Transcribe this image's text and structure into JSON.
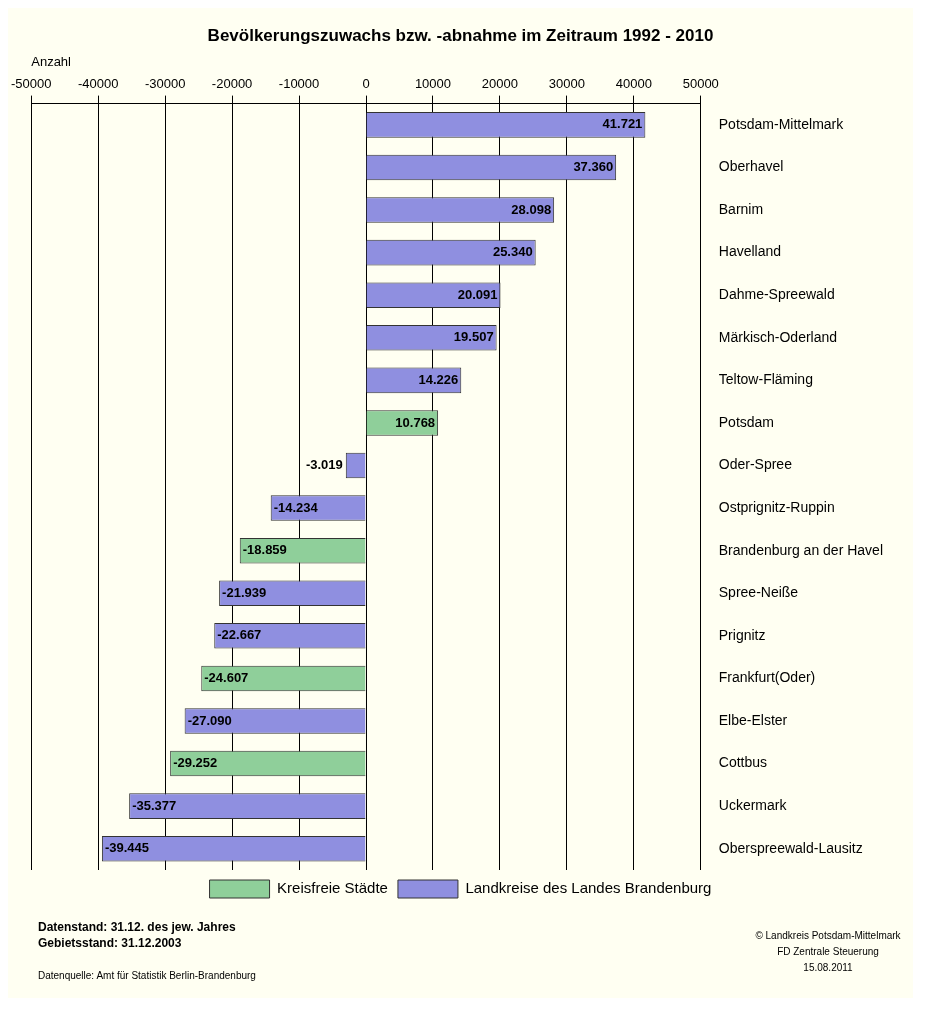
{
  "chart_data": {
    "type": "bar",
    "orientation": "horizontal",
    "stacked": true,
    "title": "Bevölkerungszuwachs bzw. -abnahme im Zeitraum 1992 - 2010",
    "xlabel": "Anzahl",
    "categories": [
      "Potsdam-Mittelmark",
      "Oberhavel",
      "Barnim",
      "Havelland",
      "Dahme-Spreewald",
      "Märkisch-Oderland",
      "Teltow-Fläming",
      "Potsdam",
      "Oder-Spree",
      "Ostprignitz-Ruppin",
      "Brandenburg an der Havel",
      "Spree-Neiße",
      "Prignitz",
      "Frankfurt(Oder)",
      "Elbe-Elster",
      "Cottbus",
      "Uckermark",
      "Oberspreewald-Lausitz"
    ],
    "series": [
      {
        "name": "Kreisfreie Städte",
        "color": "#8fcf9a",
        "values": [
          null,
          null,
          null,
          null,
          null,
          null,
          null,
          10768,
          null,
          null,
          -18859,
          null,
          null,
          -24607,
          null,
          -29252,
          null,
          null
        ],
        "value_labels": [
          null,
          null,
          null,
          null,
          null,
          null,
          null,
          "10.768",
          null,
          null,
          "-18.859",
          null,
          null,
          "-24.607",
          null,
          "-29.252",
          null,
          null
        ]
      },
      {
        "name": "Landkreise des Landes Brandenburg",
        "color": "#8f8fe0",
        "values": [
          41721,
          37360,
          28098,
          25340,
          20091,
          19507,
          14226,
          null,
          -3019,
          -14234,
          null,
          -21939,
          -22667,
          null,
          -27090,
          null,
          -35377,
          -39445
        ],
        "value_labels": [
          "41.721",
          "37.360",
          "28.098",
          "25.340",
          "20.091",
          "19.507",
          "14.226",
          null,
          "-3.019",
          "-14.234",
          null,
          "-21.939",
          "-22.667",
          null,
          "-27.090",
          null,
          "-35.377",
          "-39.445"
        ]
      }
    ],
    "xlim": [
      -50000,
      50000
    ],
    "xticks": [
      -50000,
      -40000,
      -30000,
      -20000,
      -10000,
      0,
      10000,
      20000,
      30000,
      40000,
      50000
    ],
    "grid": "x",
    "legend": "bottom",
    "annotations": [
      "Datenstand: 31.12. des jew. Jahres",
      "Gebietsstand: 31.12.2003",
      "Datenquelle: Amt für Statistik Berlin-Brandenburg",
      "© Landkreis Potsdam-Mittelmark",
      "FD Zentrale Steuerung",
      "15.08.2011"
    ]
  }
}
